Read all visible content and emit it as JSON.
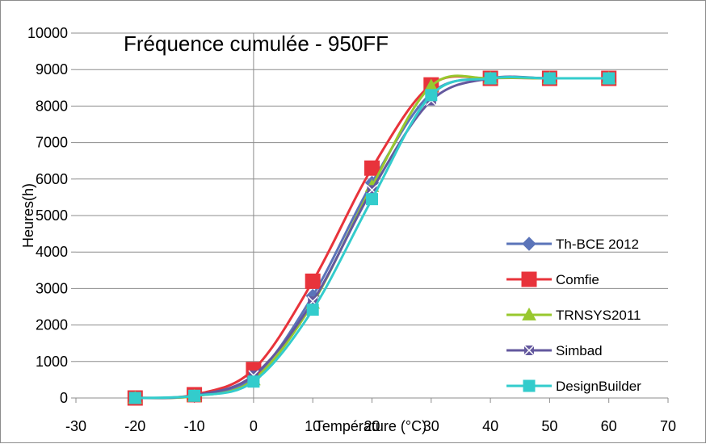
{
  "chart_data": {
    "type": "line",
    "title": "Fréquence cumulée - 950FF",
    "xlabel": "Température (°C)",
    "ylabel": "Heures(h)",
    "xlim": [
      -30,
      70
    ],
    "ylim": [
      0,
      10000
    ],
    "x_ticks": [
      -30,
      -20,
      -10,
      0,
      10,
      20,
      30,
      40,
      50,
      60,
      70
    ],
    "y_ticks": [
      0,
      1000,
      2000,
      3000,
      4000,
      5000,
      6000,
      7000,
      8000,
      9000,
      10000
    ],
    "grid": "horizontal",
    "legend_position": "right",
    "x": [
      -20,
      -10,
      0,
      10,
      20,
      30,
      40,
      50,
      60
    ],
    "series": [
      {
        "name": "Th-BCE 2012",
        "color": "#5b74b9",
        "marker": "diamond",
        "values": [
          0,
          60,
          560,
          2800,
          5900,
          8350,
          8760,
          8760,
          8760
        ]
      },
      {
        "name": "Comfie",
        "color": "#e8333b",
        "marker": "square",
        "values": [
          0,
          90,
          780,
          3200,
          6300,
          8580,
          8760,
          8760,
          8760
        ]
      },
      {
        "name": "TRNSYS2011",
        "color": "#98c82e",
        "marker": "triangle",
        "values": [
          0,
          50,
          500,
          2600,
          5800,
          8550,
          8760,
          8760,
          8760
        ]
      },
      {
        "name": "Simbad",
        "color": "#63589e",
        "marker": "x-square",
        "values": [
          0,
          70,
          620,
          2650,
          5700,
          8150,
          8760,
          8760,
          8760
        ]
      },
      {
        "name": "DesignBuilder",
        "color": "#33cccc",
        "marker": "square",
        "values": [
          0,
          60,
          450,
          2420,
          5450,
          8300,
          8760,
          8760,
          8760
        ]
      }
    ]
  }
}
